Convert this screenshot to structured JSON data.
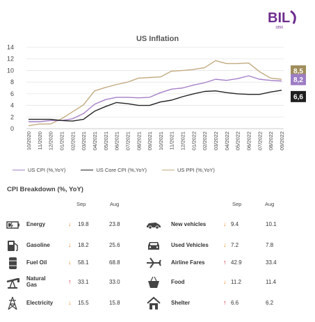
{
  "logo": {
    "text": "BIL",
    "year": "1856",
    "color": "#6d2d8e"
  },
  "chart_data": {
    "type": "line",
    "title": "US Inflation",
    "x": [
      "10/2020",
      "11/2020",
      "12/2020",
      "01/2021",
      "02/2021",
      "03/2021",
      "04/2021",
      "05/2021",
      "06/2021",
      "07/2021",
      "08/2021",
      "09/2021",
      "10/2021",
      "11/2021",
      "12/2021",
      "01/2022",
      "02/2022",
      "03/2022",
      "04/2022",
      "05/2022",
      "06/2022",
      "07/2022",
      "08/2022",
      "09/2022"
    ],
    "x_tick_labels": [
      "10/2020",
      "11/2020",
      "12/2020",
      "01/2021",
      "02/2021",
      "03/2021",
      "04/2021",
      "05/2021",
      "06/2021",
      "07/2021",
      "08/2021",
      "09/2021",
      "10/2021",
      "11/2021",
      "12/2021",
      "01/2022",
      "02/2022",
      "03/2022",
      "04/2022",
      "05/2022",
      "06/2022",
      "07/2022",
      "08/2022",
      "09/2022"
    ],
    "ylim": [
      0,
      14
    ],
    "yticks": [
      0,
      2,
      4,
      6,
      8,
      10,
      12,
      14
    ],
    "grid": true,
    "series": [
      {
        "name": "US CPI (%,YoY)",
        "color": "#a47fc7",
        "values": [
          1.2,
          1.2,
          1.4,
          1.4,
          1.7,
          2.6,
          4.2,
          5.0,
          5.4,
          5.4,
          5.3,
          5.4,
          6.2,
          6.8,
          7.0,
          7.5,
          7.9,
          8.5,
          8.3,
          8.6,
          9.1,
          8.5,
          8.3,
          8.2
        ]
      },
      {
        "name": "US Core CPI (%,YoY)",
        "color": "#222222",
        "values": [
          1.6,
          1.6,
          1.6,
          1.4,
          1.3,
          1.6,
          3.0,
          3.8,
          4.5,
          4.3,
          4.0,
          4.0,
          4.6,
          4.9,
          5.5,
          6.0,
          6.4,
          6.5,
          6.2,
          6.0,
          5.9,
          5.9,
          6.3,
          6.6
        ]
      },
      {
        "name": "US PPI (%,YoY)",
        "color": "#c2aa80",
        "values": [
          0.5,
          0.8,
          0.8,
          1.7,
          2.9,
          4.1,
          6.5,
          7.1,
          7.6,
          8.0,
          8.7,
          8.8,
          8.9,
          9.9,
          10.0,
          10.2,
          10.5,
          11.7,
          11.2,
          11.2,
          11.3,
          9.8,
          8.7,
          8.5
        ]
      }
    ],
    "end_labels": [
      {
        "text": "8,5",
        "bg": "#a08d5c"
      },
      {
        "text": "8,2",
        "bg": "#9d7dc4"
      },
      {
        "text": "6,6",
        "bg": "#1e1e1e"
      }
    ],
    "legend_position": "bottom"
  },
  "breakdown": {
    "title": "CPI Breakdown (%, YoY)",
    "col_sep": "Sep",
    "col_aug": "Aug",
    "left": [
      {
        "label": "Energy",
        "icon": "battery-icon",
        "dir": "down",
        "sep": "19.8",
        "aug": "23.8"
      },
      {
        "label": "Gasoline",
        "icon": "fuel-pump-icon",
        "dir": "down",
        "sep": "18.2",
        "aug": "25.6"
      },
      {
        "label": "Fuel Oil",
        "icon": "oil-barrel-icon",
        "dir": "down",
        "sep": "58.1",
        "aug": "68.8"
      },
      {
        "label": "Natural Gas",
        "label_line1": "Natural",
        "label_line2": "Gas",
        "icon": "pump-jack-icon",
        "dir": "up",
        "sep": "33.1",
        "aug": "33.0"
      },
      {
        "label": "Electricity",
        "icon": "power-pylon-icon",
        "dir": "down",
        "sep": "15.5",
        "aug": "15.8"
      }
    ],
    "right": [
      {
        "label": "New vehicles",
        "icon": "car-side-icon",
        "dir": "down",
        "sep": "9.4",
        "aug": "10.1"
      },
      {
        "label": "Used Vehicles",
        "icon": "car-front-icon",
        "dir": "down",
        "sep": "7.2",
        "aug": "7.8"
      },
      {
        "label": "Airline Fares",
        "icon": "airplane-icon",
        "dir": "up",
        "sep": "42.9",
        "aug": "33.4"
      },
      {
        "label": "Food",
        "icon": "basket-icon",
        "dir": "down",
        "sep": "11.2",
        "aug": "11.4"
      },
      {
        "label": "Shelter",
        "icon": "house-icon",
        "dir": "up",
        "sep": "6.6",
        "aug": "6.2"
      }
    ]
  }
}
